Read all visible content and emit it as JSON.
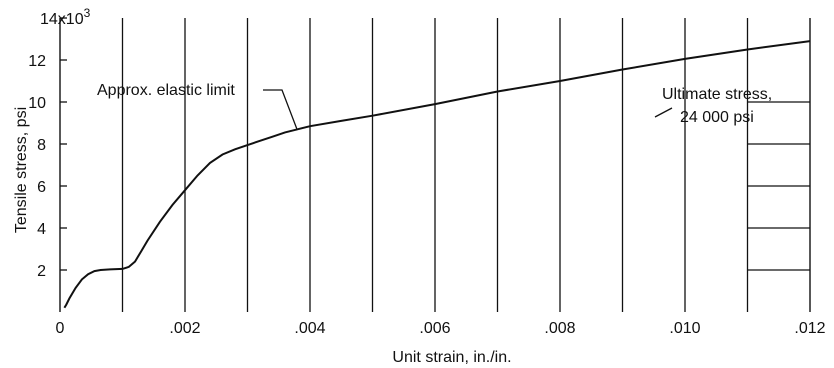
{
  "chart_data": {
    "type": "line",
    "title": "",
    "xlabel": "Unit strain, in./in.",
    "ylabel": "Tensile stress, psi",
    "xlim": [
      0,
      0.012
    ],
    "ylim": [
      0,
      14000
    ],
    "x_ticks": [
      0,
      0.002,
      0.004,
      0.006,
      0.008,
      0.01,
      0.012
    ],
    "x_tick_labels": [
      "0",
      ".002",
      ".004",
      ".006",
      ".008",
      ".010",
      ".012"
    ],
    "y_ticks": [
      2000,
      4000,
      6000,
      8000,
      10000,
      12000,
      14000
    ],
    "y_tick_labels": [
      "2",
      "4",
      "6",
      "8",
      "10",
      "12",
      "14x10"
    ],
    "y_top_exponent": "3",
    "grid": "vertical lines every .001",
    "series": [
      {
        "x": [
          7e-05,
          0.0001,
          0.00015,
          0.00025,
          0.00035,
          0.00045,
          0.00055,
          0.00065,
          0.0008,
          0.001,
          0.0011,
          0.0012,
          0.0013,
          0.0014,
          0.0016,
          0.0018,
          0.002,
          0.0022,
          0.0024,
          0.0026,
          0.0028,
          0.003,
          0.0032,
          0.0034,
          0.0036,
          0.0038,
          0.004,
          0.0045,
          0.005,
          0.006,
          0.007,
          0.008,
          0.009,
          0.01,
          0.011,
          0.012
        ],
        "y": [
          200,
          350,
          650,
          1150,
          1550,
          1800,
          1950,
          2000,
          2030,
          2050,
          2150,
          2400,
          2900,
          3400,
          4300,
          5100,
          5800,
          6500,
          7100,
          7500,
          7750,
          7950,
          8150,
          8350,
          8550,
          8700,
          8850,
          9100,
          9350,
          9900,
          10500,
          11000,
          11550,
          12050,
          12500,
          12900
        ]
      }
    ],
    "annotations": [
      {
        "text": "Approx. elastic limit",
        "x": 0.0037,
        "y": 8700
      },
      {
        "text": "Ultimate stress,",
        "x": 0.0105,
        "y": 10500
      },
      {
        "text": "24 000 psi",
        "x": 0.0105,
        "y": 9500
      }
    ]
  }
}
